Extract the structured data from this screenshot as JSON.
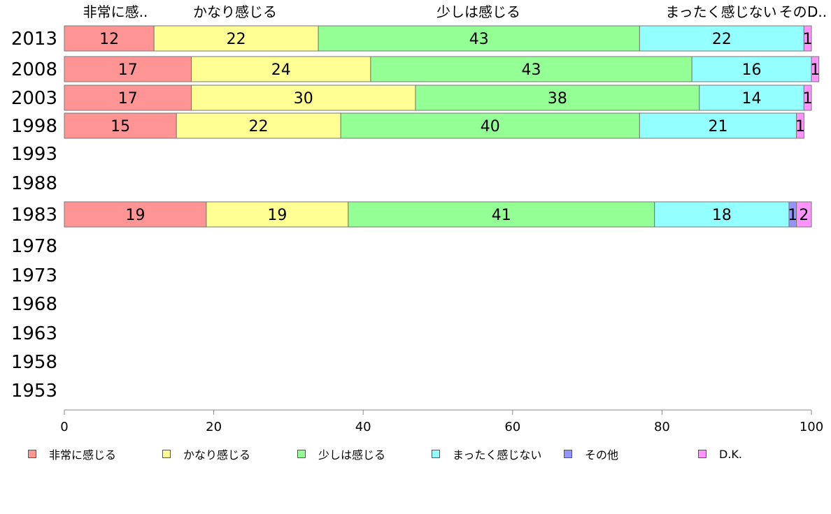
{
  "chart_data": {
    "type": "bar",
    "orientation": "horizontal",
    "stacked": true,
    "categories": [
      "2013",
      "2008",
      "2003",
      "1998",
      "1993",
      "1988",
      "1983",
      "1978",
      "1973",
      "1968",
      "1963",
      "1958",
      "1953"
    ],
    "series": [
      {
        "name": "非常に感じる",
        "color": "#ff9494",
        "values": [
          12,
          17,
          17,
          15,
          null,
          null,
          19,
          null,
          null,
          null,
          null,
          null,
          null
        ]
      },
      {
        "name": "かなり感じる",
        "color": "#ffff94",
        "values": [
          22,
          24,
          30,
          22,
          null,
          null,
          19,
          null,
          null,
          null,
          null,
          null,
          null
        ]
      },
      {
        "name": "少しは感じる",
        "color": "#94ff94",
        "values": [
          43,
          43,
          38,
          40,
          null,
          null,
          41,
          null,
          null,
          null,
          null,
          null,
          null
        ]
      },
      {
        "name": "まったく感じない",
        "color": "#94ffff",
        "values": [
          22,
          16,
          14,
          21,
          null,
          null,
          18,
          null,
          null,
          null,
          null,
          null,
          null
        ]
      },
      {
        "name": "その他",
        "color": "#9494ff",
        "values": [
          0,
          0,
          0,
          0,
          null,
          null,
          1,
          null,
          null,
          null,
          null,
          null,
          null
        ]
      },
      {
        "name": "D.K.",
        "color": "#ff94ff",
        "values": [
          1,
          1,
          1,
          1,
          null,
          null,
          2,
          null,
          null,
          null,
          null,
          null,
          null
        ]
      }
    ],
    "top_labels": [
      "非常に感..",
      "かなり感じる",
      "少しは感じる",
      "まったく感じない",
      "その..",
      "D.."
    ],
    "xlim": [
      0,
      100
    ],
    "xticks": [
      0,
      20,
      40,
      60,
      80,
      100
    ],
    "grid": false,
    "legend_position": "bottom"
  }
}
